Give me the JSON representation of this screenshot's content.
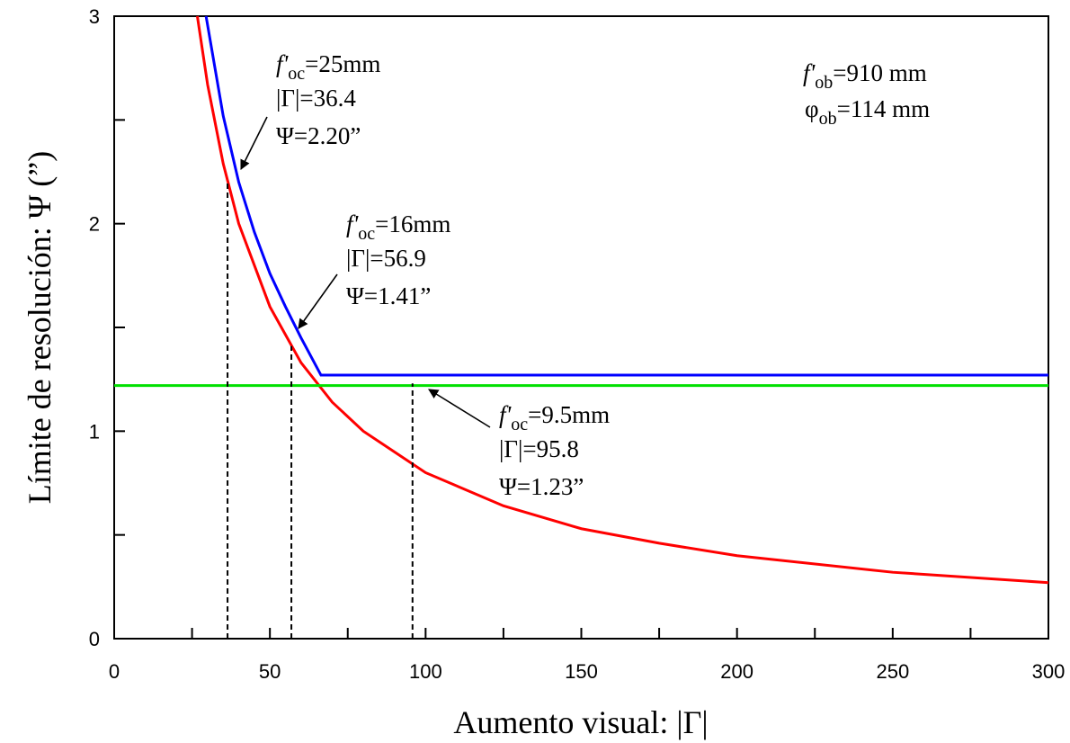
{
  "chart_data": {
    "type": "line",
    "xlabel": "Aumento visual: |Γ|",
    "ylabel": "Límite de resolución: Ψ (”)",
    "xlim": [
      0,
      300
    ],
    "ylim": [
      0,
      3
    ],
    "xticks": [
      0,
      50,
      100,
      150,
      200,
      250,
      300
    ],
    "yticks": [
      0,
      1,
      2,
      3
    ],
    "xminorticks": [
      25,
      75,
      125,
      175,
      225,
      275
    ],
    "yminorticks": [
      0.5,
      1.5,
      2.5
    ],
    "series": [
      {
        "color": "#ff0000",
        "x": [
          26.7,
          30,
          35,
          40,
          50,
          60,
          70,
          80,
          100,
          125,
          150,
          175,
          200,
          250,
          300
        ],
        "values": [
          3.0,
          2.67,
          2.29,
          2.0,
          1.6,
          1.33,
          1.14,
          1.0,
          0.8,
          0.64,
          0.53,
          0.46,
          0.4,
          0.32,
          0.27
        ]
      },
      {
        "color": "#0000ff",
        "x": [
          29.5,
          35,
          40,
          45,
          50,
          55,
          60,
          66.4,
          300
        ],
        "values": [
          3.0,
          2.52,
          2.2,
          1.96,
          1.76,
          1.6,
          1.45,
          1.27,
          1.27
        ]
      },
      {
        "color": "#00e000",
        "x": [
          0,
          300
        ],
        "values": [
          1.22,
          1.22
        ]
      }
    ],
    "markers": [
      {
        "x": 36.4,
        "y": 2.2
      },
      {
        "x": 56.9,
        "y": 1.41
      },
      {
        "x": 95.8,
        "y": 1.23
      }
    ],
    "annotations": [
      {
        "f": "f'",
        "f_sub": "oc",
        "f_rest": "=25mm",
        "gamma": "|Γ|=36.4",
        "psi": "Ψ=2.20”"
      },
      {
        "f": "f'",
        "f_sub": "oc",
        "f_rest": "=16mm",
        "gamma": "|Γ|=56.9",
        "psi": "Ψ=1.41”"
      },
      {
        "f": "f'",
        "f_sub": "oc",
        "f_rest": "=9.5mm",
        "gamma": "|Γ|=95.8",
        "psi": "Ψ=1.23”"
      }
    ],
    "objective": {
      "f": "f'",
      "f_sub": "ob",
      "f_rest": "=910 mm",
      "phi": "φ",
      "phi_sub": "ob",
      "phi_rest": "=114 mm"
    }
  }
}
